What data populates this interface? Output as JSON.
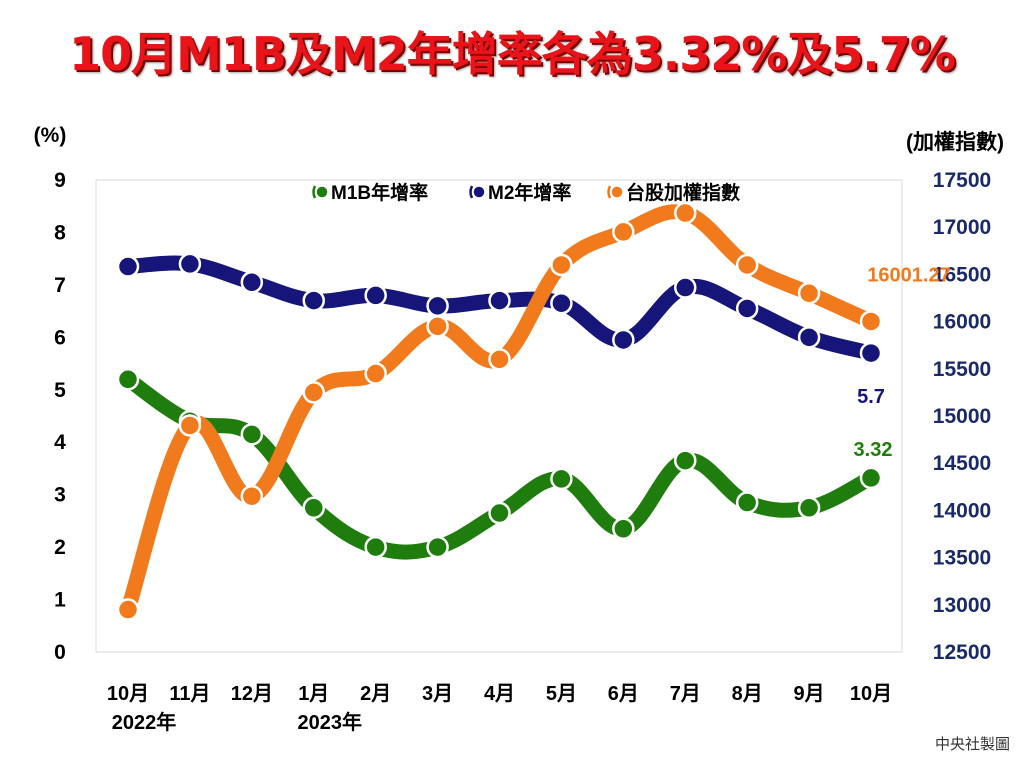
{
  "title": "10月M1B及M2年增率各為3.32%及5.7%",
  "credit": "中央社製圖",
  "chart_data": {
    "type": "line",
    "categories": [
      "10月",
      "11月",
      "12月",
      "1月",
      "2月",
      "3月",
      "4月",
      "5月",
      "6月",
      "7月",
      "8月",
      "9月",
      "10月"
    ],
    "category_sublabels": [
      "2022年",
      "",
      "",
      "2023年",
      "",
      "",
      "",
      "",
      "",
      "",
      "",
      "",
      ""
    ],
    "left_axis": {
      "label": "(%)",
      "ticks": [
        "0",
        "1",
        "2",
        "3",
        "4",
        "5",
        "6",
        "7",
        "8",
        "9"
      ],
      "ylim": [
        0,
        9
      ]
    },
    "right_axis": {
      "label": "(加權指數)",
      "ticks": [
        "12500",
        "13000",
        "13500",
        "14000",
        "14500",
        "15000",
        "15500",
        "16000",
        "16500",
        "17000",
        "17500"
      ],
      "ylim": [
        12500,
        17500
      ]
    },
    "legend_position": "top",
    "grid": false,
    "series": [
      {
        "name": "M1B年增率",
        "axis": "left",
        "color": "#1e7d0c",
        "values": [
          5.2,
          4.4,
          4.15,
          2.75,
          2.0,
          2.0,
          2.65,
          3.3,
          2.35,
          3.65,
          2.85,
          2.75,
          3.32
        ]
      },
      {
        "name": "M2年增率",
        "axis": "left",
        "color": "#16167a",
        "values": [
          7.35,
          7.4,
          7.05,
          6.7,
          6.8,
          6.6,
          6.7,
          6.65,
          5.95,
          6.95,
          6.55,
          6.0,
          5.7
        ]
      },
      {
        "name": "台股加權指數",
        "axis": "right",
        "color": "#f07a1c",
        "values": [
          12950,
          14900,
          14150,
          15250,
          15450,
          15950,
          15600,
          16600,
          16950,
          17150,
          16600,
          16300,
          16001.27
        ]
      }
    ],
    "annotations": [
      {
        "series": "台股加權指數",
        "index": 12,
        "text": "16001.27",
        "color": "#f07a1c"
      },
      {
        "series": "M2年增率",
        "index": 12,
        "text": "5.7",
        "color": "#16167a"
      },
      {
        "series": "M1B年增率",
        "index": 12,
        "text": "3.32",
        "color": "#1e7d0c"
      }
    ]
  }
}
